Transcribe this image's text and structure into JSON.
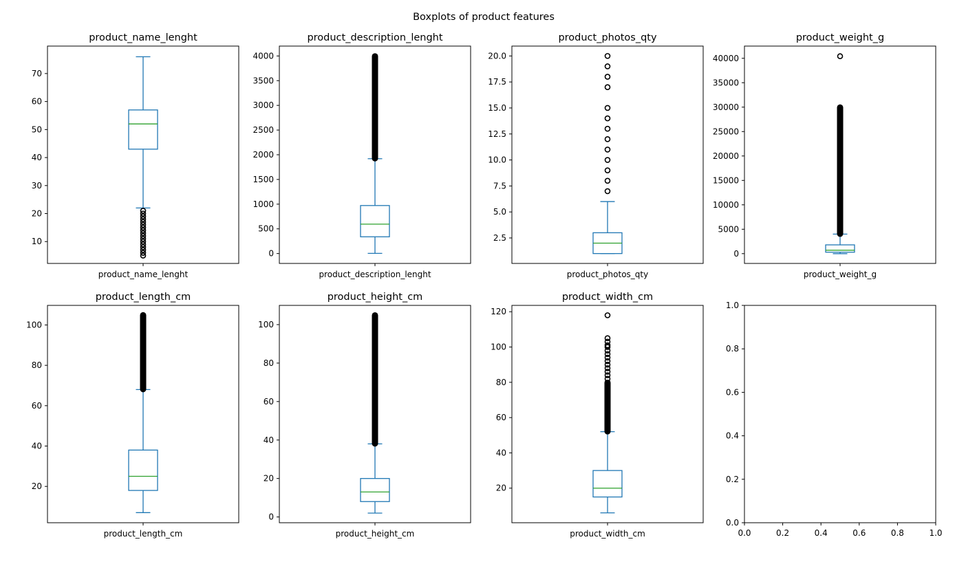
{
  "chart_data": {
    "suptitle": "Boxplots of product features",
    "colors": {
      "box": "#1f77b4",
      "median": "#2ca02c",
      "flier": "#000000"
    },
    "panels": [
      {
        "id": "product_name_lenght",
        "type": "box",
        "title": "product_name_lenght",
        "xlabel": "product_name_lenght",
        "ylim": [
          2.2,
          79.8
        ],
        "yticks": [
          10,
          20,
          30,
          40,
          50,
          60,
          70
        ],
        "ytick_labels": [
          "10",
          "20",
          "30",
          "40",
          "50",
          "60",
          "70"
        ],
        "stats": {
          "whislo": 22,
          "q1": 43,
          "med": 52,
          "q3": 57,
          "whishi": 76
        },
        "fliers": [
          5,
          6,
          7,
          8,
          9,
          10,
          11,
          12,
          13,
          14,
          15,
          16,
          17,
          18,
          19,
          20,
          21
        ]
      },
      {
        "id": "product_description_lenght",
        "type": "box",
        "title": "product_description_lenght",
        "xlabel": "product_description_lenght",
        "ylim": [
          -200,
          4200
        ],
        "yticks": [
          0,
          500,
          1000,
          1500,
          2000,
          2500,
          3000,
          3500,
          4000
        ],
        "ytick_labels": [
          "0",
          "500",
          "1000",
          "1500",
          "2000",
          "2500",
          "3000",
          "3500",
          "4000"
        ],
        "stats": {
          "whislo": 4,
          "q1": 339,
          "med": 595,
          "q3": 972,
          "whishi": 1920
        },
        "fliers_dense": [
          1920,
          4000
        ]
      },
      {
        "id": "product_photos_qty",
        "type": "box",
        "title": "product_photos_qty",
        "xlabel": "product_photos_qty",
        "ylim": [
          0.05,
          20.95
        ],
        "yticks": [
          2.5,
          5.0,
          7.5,
          10.0,
          12.5,
          15.0,
          17.5,
          20.0
        ],
        "ytick_labels": [
          "2.5",
          "5.0",
          "7.5",
          "10.0",
          "12.5",
          "15.0",
          "17.5",
          "20.0"
        ],
        "stats": {
          "whislo": 1,
          "q1": 1,
          "med": 2,
          "q3": 3,
          "whishi": 6
        },
        "fliers": [
          7,
          8,
          9,
          10,
          11,
          12,
          13,
          14,
          15,
          17,
          18,
          19,
          20
        ]
      },
      {
        "id": "product_weight_g",
        "type": "box",
        "title": "product_weight_g",
        "xlabel": "product_weight_g",
        "ylim": [
          -2000,
          42500
        ],
        "yticks": [
          0,
          5000,
          10000,
          15000,
          20000,
          25000,
          30000,
          35000,
          40000
        ],
        "ytick_labels": [
          "0",
          "5000",
          "10000",
          "15000",
          "20000",
          "25000",
          "30000",
          "35000",
          "40000"
        ],
        "stats": {
          "whislo": 0,
          "q1": 300,
          "med": 700,
          "q3": 1800,
          "whishi": 4000
        },
        "fliers_dense": [
          4000,
          30000
        ],
        "fliers": [
          40425
        ]
      },
      {
        "id": "product_length_cm",
        "type": "box",
        "title": "product_length_cm",
        "xlabel": "product_length_cm",
        "ylim": [
          2.0,
          109.7
        ],
        "yticks": [
          20,
          40,
          60,
          80,
          100
        ],
        "ytick_labels": [
          "20",
          "40",
          "60",
          "80",
          "100"
        ],
        "stats": {
          "whislo": 7,
          "q1": 18,
          "med": 25,
          "q3": 38,
          "whishi": 68
        },
        "fliers_dense": [
          68,
          105
        ]
      },
      {
        "id": "product_height_cm",
        "type": "box",
        "title": "product_height_cm",
        "xlabel": "product_height_cm",
        "ylim": [
          -3.0,
          110.0
        ],
        "yticks": [
          0,
          20,
          40,
          60,
          80,
          100
        ],
        "ytick_labels": [
          "0",
          "20",
          "40",
          "60",
          "80",
          "100"
        ],
        "stats": {
          "whislo": 2,
          "q1": 8,
          "med": 13,
          "q3": 20,
          "whishi": 38
        },
        "fliers_dense": [
          38,
          105
        ]
      },
      {
        "id": "product_width_cm",
        "type": "box",
        "title": "product_width_cm",
        "xlabel": "product_width_cm",
        "ylim": [
          0.4,
          123.6
        ],
        "yticks": [
          20,
          40,
          60,
          80,
          100,
          120
        ],
        "ytick_labels": [
          "20",
          "40",
          "60",
          "80",
          "100",
          "120"
        ],
        "stats": {
          "whislo": 6,
          "q1": 15,
          "med": 20,
          "q3": 30,
          "whishi": 52
        },
        "fliers_dense": [
          52,
          80
        ],
        "fliers": [
          82,
          84,
          86,
          88,
          90,
          92,
          94,
          96,
          98,
          100,
          101,
          103,
          105,
          118
        ]
      },
      {
        "id": "empty",
        "type": "empty",
        "title": "",
        "xlabel": "",
        "xlim": [
          0,
          1
        ],
        "ylim": [
          0,
          1
        ],
        "xticks": [
          0,
          0.2,
          0.4,
          0.6,
          0.8,
          1.0
        ],
        "xtick_labels": [
          "0.0",
          "0.2",
          "0.4",
          "0.6",
          "0.8",
          "1.0"
        ],
        "yticks": [
          0,
          0.2,
          0.4,
          0.6,
          0.8,
          1.0
        ],
        "ytick_labels": [
          "0.0",
          "0.2",
          "0.4",
          "0.6",
          "0.8",
          "1.0"
        ]
      }
    ]
  }
}
